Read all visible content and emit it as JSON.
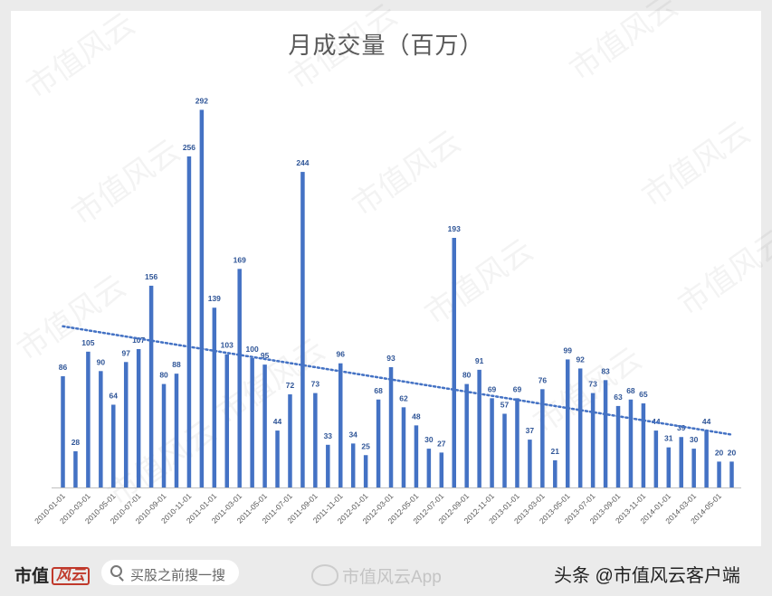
{
  "page": {
    "watermark_text": "市值风云"
  },
  "chart_data": {
    "type": "bar",
    "title": "月成交量（百万）",
    "xlabel": "",
    "ylabel": "",
    "ylim": [
      0,
      300
    ],
    "grid": false,
    "legend": "none",
    "trendline": {
      "type": "linear",
      "style": "dotted"
    },
    "colors": {
      "bar": "#4472c4",
      "label": "#2f5597",
      "trend": "#4472c4",
      "axis": "#bfbfbf",
      "tick": "#595959"
    },
    "categories": [
      "2010-01-01",
      "2010-02-01",
      "2010-03-01",
      "2010-04-01",
      "2010-05-01",
      "2010-06-01",
      "2010-07-01",
      "2010-08-01",
      "2010-09-01",
      "2010-10-01",
      "2010-11-01",
      "2010-12-01",
      "2011-01-01",
      "2011-02-01",
      "2011-03-01",
      "2011-04-01",
      "2011-05-01",
      "2011-06-01",
      "2011-07-01",
      "2011-08-01",
      "2011-09-01",
      "2011-10-01",
      "2011-11-01",
      "2011-12-01",
      "2012-01-01",
      "2012-02-01",
      "2012-03-01",
      "2012-04-01",
      "2012-05-01",
      "2012-06-01",
      "2012-07-01",
      "2012-08-01",
      "2012-09-01",
      "2012-10-01",
      "2012-11-01",
      "2012-12-01",
      "2013-01-01",
      "2013-02-01",
      "2013-03-01",
      "2013-04-01",
      "2013-05-01",
      "2013-06-01",
      "2013-07-01",
      "2013-08-01",
      "2013-09-01",
      "2013-10-01",
      "2013-11-01",
      "2013-12-01",
      "2014-01-01",
      "2014-02-01",
      "2014-03-01",
      "2014-04-01",
      "2014-05-01",
      "2014-06-01"
    ],
    "tick_labels": [
      "2010-01-01",
      "2010-03-01",
      "2010-05-01",
      "2010-07-01",
      "2010-09-01",
      "2010-11-01",
      "2011-01-01",
      "2011-03-01",
      "2011-05-01",
      "2011-07-01",
      "2011-09-01",
      "2011-11-01",
      "2012-01-01",
      "2012-03-01",
      "2012-05-01",
      "2012-07-01",
      "2012-09-01",
      "2012-11-01",
      "2013-01-01",
      "2013-03-01",
      "2013-05-01",
      "2013-07-01",
      "2013-09-01",
      "2013-11-01",
      "2014-01-01",
      "2014-03-01",
      "2014-05-01"
    ],
    "values": [
      86,
      28,
      105,
      90,
      64,
      97,
      107,
      156,
      80,
      88,
      256,
      292,
      139,
      103,
      169,
      100,
      95,
      44,
      72,
      244,
      73,
      33,
      96,
      34,
      25,
      68,
      93,
      62,
      48,
      30,
      27,
      193,
      80,
      91,
      69,
      57,
      69,
      37,
      76,
      21,
      99,
      92,
      73,
      83,
      63,
      68,
      65,
      44,
      31,
      39,
      30,
      44,
      20,
      20
    ]
  },
  "footer": {
    "brand": "市值",
    "brand_mark": "风云",
    "search_placeholder": "买股之前搜一搜",
    "weibo_text": "市值风云App",
    "credit": "头条 @市值风云客户端"
  }
}
